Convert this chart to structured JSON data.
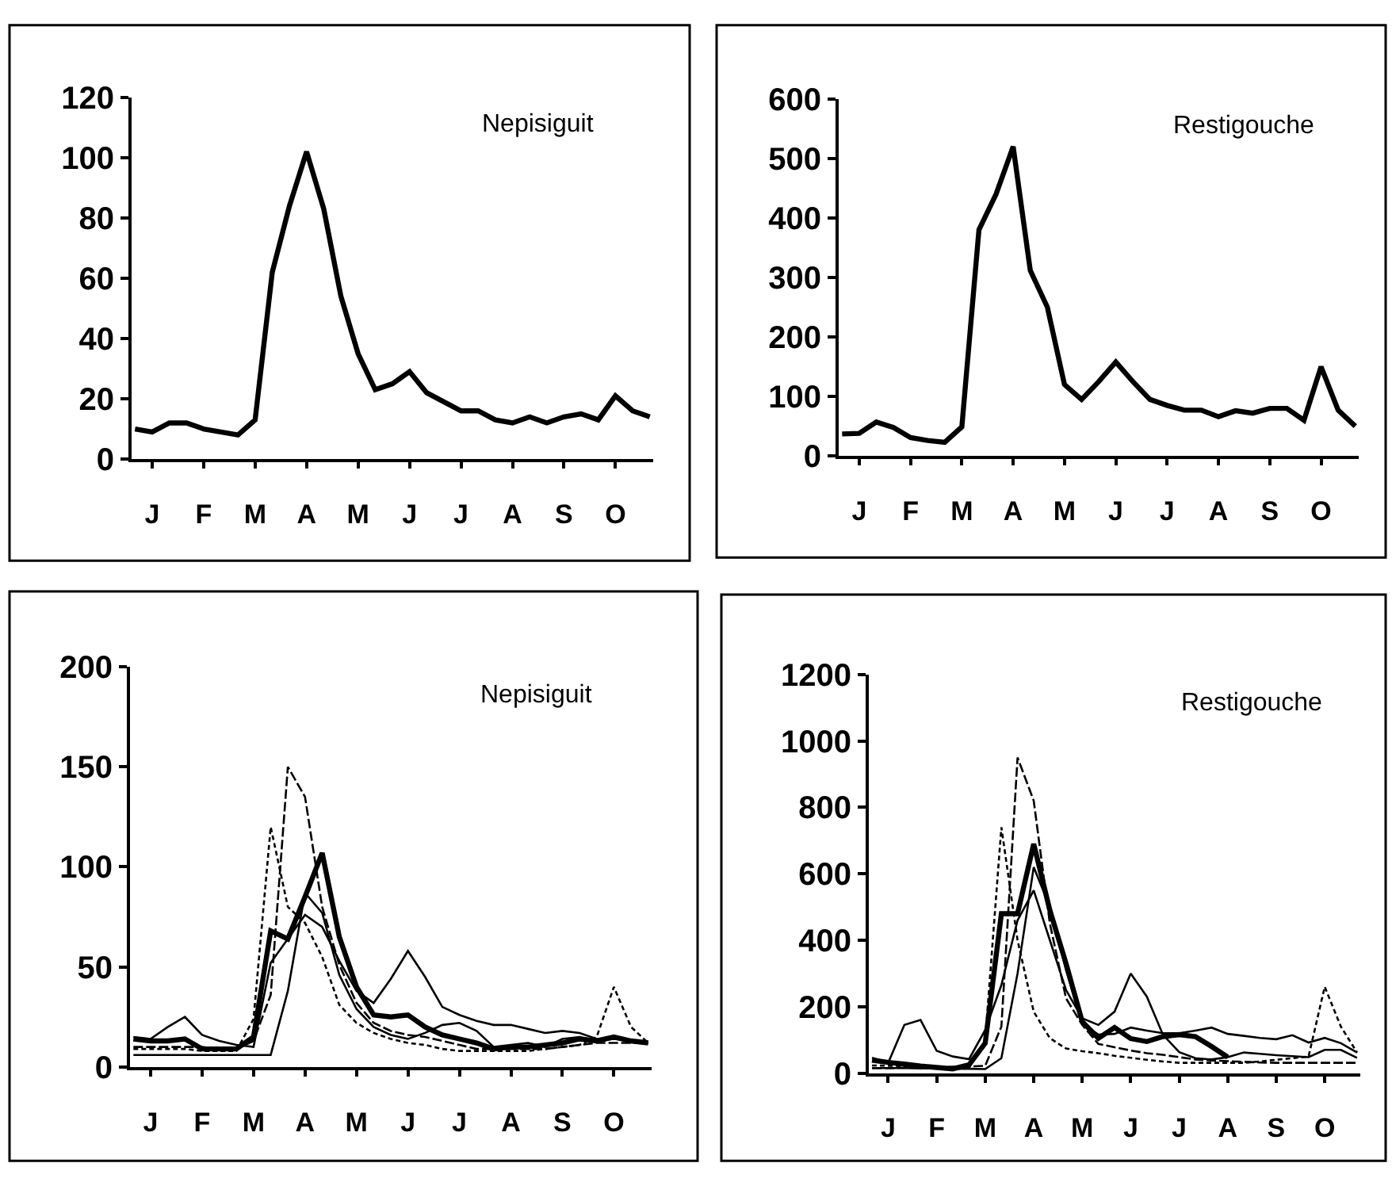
{
  "chart_data": [
    {
      "type": "line",
      "title": "Nepisiguit",
      "categories": [
        null,
        "J",
        null,
        null,
        "F",
        null,
        null,
        "M",
        null,
        null,
        "A",
        null,
        null,
        "M",
        null,
        null,
        "J",
        null,
        null,
        "J",
        null,
        null,
        "A",
        null,
        null,
        "S",
        null,
        null,
        "O",
        null,
        null
      ],
      "ylim": [
        0,
        120
      ],
      "yticks": [
        0,
        20,
        40,
        60,
        80,
        100,
        120
      ],
      "marker": "none",
      "series": [
        {
          "color": "#000000",
          "line_style": "solid",
          "values": [
            10,
            9,
            12,
            12,
            10,
            9,
            8,
            13,
            62,
            84,
            102,
            83,
            54,
            35,
            23,
            25,
            29,
            22,
            19,
            16,
            16,
            13,
            12,
            14,
            12,
            14,
            15,
            13,
            21,
            16,
            14
          ]
        }
      ]
    },
    {
      "type": "line",
      "title": "Restigouche",
      "categories": [
        null,
        "J",
        null,
        null,
        "F",
        null,
        null,
        "M",
        null,
        null,
        "A",
        null,
        null,
        "M",
        null,
        null,
        "J",
        null,
        null,
        "J",
        null,
        null,
        "A",
        null,
        null,
        "S",
        null,
        null,
        "O",
        null,
        null
      ],
      "ylim": [
        0,
        600
      ],
      "yticks": [
        0,
        100,
        200,
        300,
        400,
        500,
        600
      ],
      "marker": "none",
      "series": [
        {
          "color": "#000000",
          "line_style": "solid",
          "values": [
            37,
            38,
            57,
            48,
            31,
            26,
            23,
            49,
            380,
            440,
            520,
            312,
            250,
            120,
            95,
            125,
            158,
            125,
            95,
            85,
            77,
            77,
            66,
            76,
            72,
            80,
            80,
            60,
            150,
            77,
            50
          ]
        }
      ]
    },
    {
      "type": "line",
      "title": "Nepisiguit",
      "categories": [
        null,
        "J",
        null,
        null,
        "F",
        null,
        null,
        "M",
        null,
        null,
        "A",
        null,
        null,
        "M",
        null,
        null,
        "J",
        null,
        null,
        "J",
        null,
        null,
        "A",
        null,
        null,
        "S",
        null,
        null,
        "O",
        null,
        null
      ],
      "ylim": [
        0,
        200
      ],
      "yticks": [
        0,
        50,
        100,
        150,
        200
      ],
      "marker": "none",
      "series": [
        {
          "color": "#000000",
          "line_style": "solid",
          "values": [
            14,
            13,
            13,
            14,
            9,
            9,
            9,
            15,
            68,
            64,
            85,
            107,
            65,
            40,
            26,
            25,
            26,
            20,
            16,
            14,
            12,
            9,
            10,
            10,
            11,
            12,
            14,
            13,
            15,
            13,
            12
          ]
        },
        {
          "color": "#000000",
          "line_style": "solid",
          "values": [
            15,
            14,
            20,
            25,
            16,
            13,
            11,
            10,
            52,
            64,
            76,
            70,
            53,
            38,
            32,
            44,
            58,
            45,
            30,
            26,
            23,
            21,
            21,
            19,
            17,
            18,
            17,
            14,
            15,
            13,
            12
          ]
        },
        {
          "color": "#000000",
          "line_style": "solid",
          "values": [
            6,
            6,
            6,
            6,
            6,
            6,
            6,
            6,
            6,
            38,
            87,
            77,
            46,
            29,
            20,
            16,
            14,
            17,
            21,
            22,
            18,
            10,
            11,
            12,
            10,
            14,
            15,
            13,
            14,
            13,
            12
          ]
        },
        {
          "color": "#000000",
          "line_style": "dotted",
          "values": [
            9,
            9,
            9,
            9,
            8,
            8,
            8,
            24,
            120,
            80,
            72,
            55,
            31,
            22,
            17,
            14,
            12,
            11,
            9,
            8,
            8,
            8,
            8,
            8,
            9,
            10,
            11,
            15,
            40,
            20,
            12
          ]
        },
        {
          "color": "#000000",
          "line_style": "dashed",
          "values": [
            10,
            10,
            10,
            10,
            10,
            9,
            9,
            13,
            36,
            150,
            135,
            80,
            51,
            32,
            22,
            18,
            16,
            15,
            13,
            11,
            9,
            9,
            9,
            9,
            9,
            10,
            11,
            12,
            12,
            12,
            12
          ]
        }
      ]
    },
    {
      "type": "line",
      "title": "Restigouche",
      "categories": [
        null,
        "J",
        null,
        null,
        "F",
        null,
        null,
        "M",
        null,
        null,
        "A",
        null,
        null,
        "M",
        null,
        null,
        "J",
        null,
        null,
        "J",
        null,
        null,
        "A",
        null,
        null,
        "S",
        null,
        null,
        "O",
        null,
        null
      ],
      "ylim": [
        0,
        1200
      ],
      "yticks": [
        0,
        200,
        400,
        600,
        800,
        1000,
        1200
      ],
      "marker": "none",
      "series": [
        {
          "color": "#000000",
          "line_style": "solid",
          "values": [
            39,
            32,
            27,
            21,
            17,
            13,
            25,
            90,
            480,
            480,
            690,
            490,
            330,
            155,
            105,
            137,
            104,
            95,
            110,
            116,
            110,
            80,
            48,
            null,
            null,
            null,
            null,
            null,
            null,
            null,
            null
          ]
        },
        {
          "color": "#000000",
          "line_style": "solid",
          "values": [
            46,
            31,
            145,
            160,
            67,
            50,
            42,
            130,
            265,
            460,
            550,
            400,
            250,
            165,
            145,
            185,
            300,
            230,
            115,
            63,
            45,
            41,
            48,
            62,
            58,
            54,
            51,
            48,
            70,
            70,
            46
          ]
        },
        {
          "color": "#000000",
          "line_style": "solid",
          "values": [
            15,
            15,
            15,
            14,
            14,
            13,
            13,
            12,
            45,
            300,
            620,
            500,
            310,
            150,
            116,
            118,
            137,
            128,
            120,
            120,
            128,
            137,
            118,
            112,
            106,
            102,
            114,
            92,
            106,
            90,
            62
          ]
        },
        {
          "color": "#000000",
          "line_style": "dotted",
          "values": [
            23,
            22,
            21,
            20,
            18,
            17,
            16,
            100,
            740,
            400,
            185,
            105,
            74,
            66,
            60,
            52,
            46,
            40,
            35,
            31,
            31,
            31,
            31,
            31,
            35,
            40,
            45,
            50,
            260,
            140,
            62
          ]
        },
        {
          "color": "#000000",
          "line_style": "dashed",
          "values": [
            15,
            15,
            16,
            17,
            18,
            19,
            20,
            22,
            140,
            950,
            820,
            450,
            225,
            145,
            88,
            78,
            68,
            60,
            55,
            48,
            41,
            38,
            36,
            34,
            32,
            31,
            31,
            31,
            31,
            31,
            31
          ]
        }
      ]
    }
  ]
}
